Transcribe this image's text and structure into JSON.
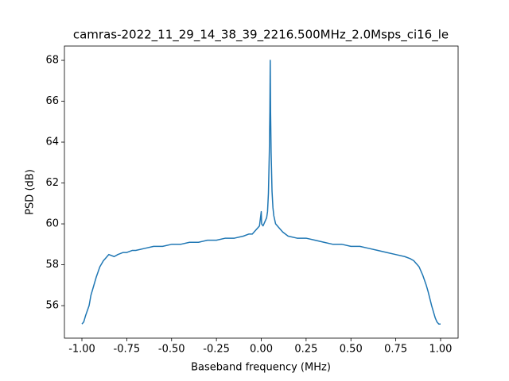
{
  "chart_data": {
    "type": "line",
    "title": "camras-2022_11_29_14_38_39_2216.500MHz_2.0Msps_ci16_le",
    "x_label": "Baseband frequency (MHz)",
    "y_label": "PSD (dB)",
    "x": [
      -1.0,
      -0.99,
      -0.98,
      -0.96,
      -0.95,
      -0.93,
      -0.92,
      -0.9,
      -0.88,
      -0.87,
      -0.85,
      -0.82,
      -0.8,
      -0.77,
      -0.75,
      -0.72,
      -0.7,
      -0.65,
      -0.6,
      -0.55,
      -0.5,
      -0.45,
      -0.4,
      -0.35,
      -0.3,
      -0.25,
      -0.2,
      -0.15,
      -0.1,
      -0.07,
      -0.05,
      -0.03,
      -0.02,
      -0.01,
      0.0,
      0.002,
      0.01,
      0.02,
      0.03,
      0.035,
      0.04,
      0.045,
      0.048,
      0.05,
      0.052,
      0.055,
      0.06,
      0.065,
      0.07,
      0.08,
      0.1,
      0.12,
      0.15,
      0.2,
      0.25,
      0.3,
      0.35,
      0.4,
      0.45,
      0.5,
      0.55,
      0.6,
      0.65,
      0.7,
      0.75,
      0.8,
      0.83,
      0.85,
      0.87,
      0.88,
      0.9,
      0.92,
      0.93,
      0.95,
      0.96,
      0.97,
      0.98,
      0.99,
      1.0
    ],
    "series": [
      {
        "name": "PSD",
        "color": "#1f77b4",
        "values": [
          55.1,
          55.2,
          55.5,
          56.0,
          56.5,
          57.1,
          57.4,
          57.9,
          58.2,
          58.3,
          58.5,
          58.4,
          58.5,
          58.6,
          58.6,
          58.7,
          58.7,
          58.8,
          58.9,
          58.9,
          59.0,
          59.0,
          59.1,
          59.1,
          59.2,
          59.2,
          59.3,
          59.3,
          59.4,
          59.5,
          59.5,
          59.7,
          59.8,
          59.9,
          60.6,
          60.0,
          59.9,
          60.1,
          60.3,
          60.6,
          61.5,
          63.5,
          65.5,
          68.0,
          65.5,
          63.5,
          61.6,
          60.8,
          60.4,
          60.0,
          59.8,
          59.6,
          59.4,
          59.3,
          59.3,
          59.2,
          59.1,
          59.0,
          59.0,
          58.9,
          58.9,
          58.8,
          58.7,
          58.6,
          58.5,
          58.4,
          58.3,
          58.2,
          58.0,
          57.9,
          57.5,
          57.0,
          56.7,
          56.0,
          55.7,
          55.4,
          55.2,
          55.1,
          55.1
        ]
      }
    ],
    "xlim": [
      -1.0976,
      1.0976
    ],
    "ylim": [
      54.41,
      68.7
    ],
    "xticks": [
      {
        "value": -1,
        "label": "-1.00"
      },
      {
        "value": -0.75,
        "label": "-0.75"
      },
      {
        "value": -0.5,
        "label": "-0.50"
      },
      {
        "value": -0.25,
        "label": "-0.25"
      },
      {
        "value": 0,
        "label": "0.00"
      },
      {
        "value": 0.25,
        "label": "0.25"
      },
      {
        "value": 0.5,
        "label": "0.50"
      },
      {
        "value": 0.75,
        "label": "0.75"
      },
      {
        "value": 1,
        "label": "1.00"
      }
    ],
    "yticks": [
      56,
      58,
      60,
      62,
      64,
      66,
      68
    ]
  }
}
